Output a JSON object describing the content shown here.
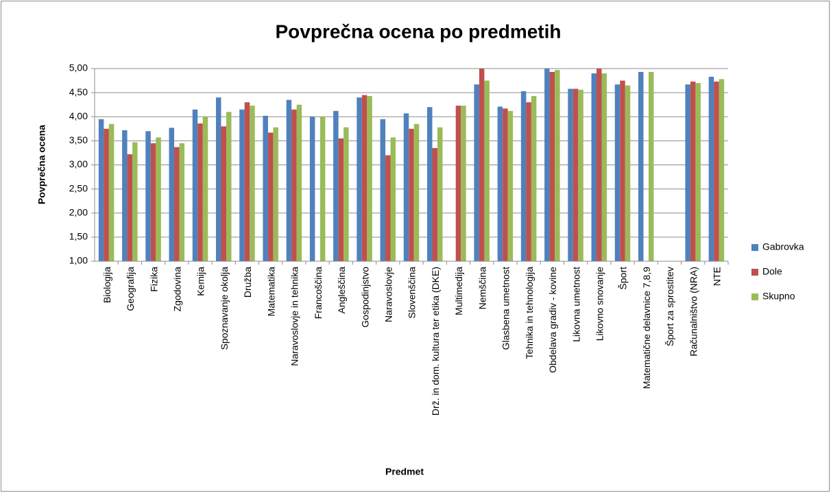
{
  "chart_data": {
    "type": "bar",
    "title": "Povprečna ocena po predmetih",
    "xlabel": "Predmet",
    "ylabel": "Povprečna ocena",
    "categories": [
      "Biologija",
      "Geografija",
      "Fizika",
      "Zgodovina",
      "Kemija",
      "Spoznavanje okolja",
      "Družba",
      "Matematika",
      "Naravoslovje in tehnika",
      "Francoščina",
      "Angleščina",
      "Gospodinjstvo",
      "Naravoslovje",
      "Slovenščina",
      "Drž. in dom. kultura ter etika (DKE)",
      "Multimedija",
      "Nemščina",
      "Glasbena umetnost",
      "Tehnika in tehnologija",
      "Obdelava gradiv - kovine",
      "Likovna umetnost",
      "Likovno snovanje",
      "Šport",
      "Matematične delavnice 7,8,9",
      "Šport za sprostitev",
      "Računalništvo (NRA)",
      "NTE"
    ],
    "series": [
      {
        "name": "Gabrovka",
        "color": "#4f81bd",
        "values": [
          3.95,
          3.72,
          3.7,
          3.77,
          4.15,
          4.4,
          4.15,
          4.02,
          4.35,
          4.0,
          4.12,
          4.4,
          3.95,
          4.07,
          4.2,
          null,
          4.67,
          4.21,
          4.53,
          5.0,
          4.58,
          4.9,
          4.67,
          4.93,
          null,
          4.67,
          4.83
        ]
      },
      {
        "name": "Dole",
        "color": "#c0504d",
        "values": [
          3.75,
          3.22,
          3.45,
          3.37,
          3.86,
          3.8,
          4.3,
          3.67,
          4.15,
          null,
          3.55,
          4.45,
          3.2,
          3.75,
          3.35,
          4.23,
          5.0,
          4.17,
          4.3,
          4.93,
          4.58,
          5.0,
          4.75,
          null,
          null,
          4.73,
          4.73
        ]
      },
      {
        "name": "Skupno",
        "color": "#9bbb59",
        "values": [
          3.85,
          3.47,
          3.57,
          3.45,
          4.0,
          4.1,
          4.23,
          3.78,
          4.25,
          4.0,
          3.78,
          4.43,
          3.57,
          3.85,
          3.78,
          4.23,
          4.75,
          4.12,
          4.43,
          4.97,
          4.56,
          4.9,
          4.65,
          4.93,
          null,
          4.7,
          4.78
        ]
      }
    ],
    "ylim": [
      1,
      5
    ],
    "yticks": [
      {
        "value": 1,
        "label": "1,00"
      },
      {
        "value": 1.5,
        "label": "1,50"
      },
      {
        "value": 2,
        "label": "2,00"
      },
      {
        "value": 2.5,
        "label": "2,50"
      },
      {
        "value": 3,
        "label": "3,00"
      },
      {
        "value": 3.5,
        "label": "3,50"
      },
      {
        "value": 4,
        "label": "4,00"
      },
      {
        "value": 4.5,
        "label": "4,50"
      },
      {
        "value": 5,
        "label": "5,00"
      }
    ],
    "grid": true,
    "legend": "right"
  }
}
